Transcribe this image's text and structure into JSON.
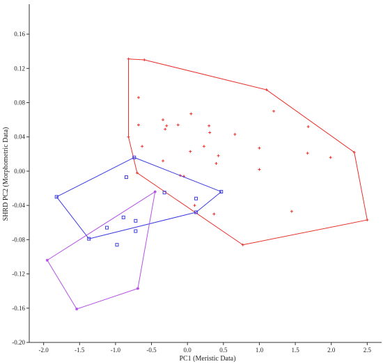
{
  "chart_data": {
    "type": "scatter",
    "xlabel": "PC1 (Meristic Data)",
    "ylabel": "SHRD PC2 (Morphometric Data)",
    "xlim": [
      -2.2,
      2.7
    ],
    "ylim": [
      -0.2,
      0.195
    ],
    "xticks": [
      -2.0,
      -1.5,
      -1.0,
      -0.5,
      0.0,
      0.5,
      1.0,
      1.5,
      2.0,
      2.5
    ],
    "xtick_labels": [
      "-2.0",
      "-1.5",
      "-1.0",
      "-0.5",
      "0.0",
      "0.5",
      "1.0",
      "1.5",
      "2.0",
      "2.5"
    ],
    "yticks": [
      0.16,
      0.12,
      0.08,
      0.04,
      0.0,
      -0.04,
      -0.08,
      -0.12,
      -0.16,
      -0.2
    ],
    "ytick_labels": [
      "0.16",
      "0.12",
      "0.08",
      "0.04",
      "0.00",
      "-0.04",
      "-0.08",
      "-0.12",
      "-0.16",
      "-0.20"
    ],
    "grid": false,
    "series": [
      {
        "color": "#e8302a",
        "marker": "plus",
        "points": [
          [
            -0.82,
            0.131
          ],
          [
            -0.6,
            0.13
          ],
          [
            1.1,
            0.095
          ],
          [
            2.32,
            0.022
          ],
          [
            2.5,
            -0.057
          ],
          [
            0.77,
            -0.086
          ],
          [
            -0.7,
            -0.002
          ],
          [
            -0.82,
            0.04
          ],
          [
            -0.68,
            0.086
          ],
          [
            -0.68,
            0.054
          ],
          [
            -0.63,
            0.029
          ],
          [
            -0.34,
            0.06
          ],
          [
            -0.31,
            0.049
          ],
          [
            -0.29,
            0.053
          ],
          [
            -0.13,
            0.054
          ],
          [
            0.05,
            0.067
          ],
          [
            0.3,
            0.053
          ],
          [
            0.31,
            0.045
          ],
          [
            0.66,
            0.043
          ],
          [
            0.23,
            0.029
          ],
          [
            0.04,
            0.023
          ],
          [
            0.4,
            0.009
          ],
          [
            0.43,
            0.018
          ],
          [
            -0.34,
            0.012
          ],
          [
            1.0,
            0.027
          ],
          [
            1.0,
            0.002
          ],
          [
            1.2,
            0.07
          ],
          [
            1.68,
            0.052
          ],
          [
            1.67,
            0.021
          ],
          [
            1.99,
            0.016
          ],
          [
            -0.1,
            -0.005
          ],
          [
            -0.05,
            -0.006
          ],
          [
            0.1,
            -0.04
          ],
          [
            0.37,
            -0.05
          ],
          [
            1.45,
            -0.047
          ]
        ],
        "hull": [
          [
            -0.82,
            0.131
          ],
          [
            -0.6,
            0.13
          ],
          [
            1.1,
            0.095
          ],
          [
            2.32,
            0.022
          ],
          [
            2.5,
            -0.057
          ],
          [
            0.77,
            -0.086
          ],
          [
            -0.7,
            -0.002
          ],
          [
            -0.82,
            0.04
          ]
        ]
      },
      {
        "color": "#3b3be0",
        "marker": "square",
        "points": [
          [
            -0.74,
            0.016
          ],
          [
            0.47,
            -0.024
          ],
          [
            0.12,
            -0.048
          ],
          [
            -1.37,
            -0.079
          ],
          [
            -1.82,
            -0.03
          ],
          [
            -0.85,
            -0.007
          ],
          [
            -0.32,
            -0.025
          ],
          [
            0.12,
            -0.032
          ],
          [
            -0.89,
            -0.054
          ],
          [
            -1.12,
            -0.066
          ],
          [
            -0.72,
            -0.058
          ],
          [
            -0.72,
            -0.07
          ],
          [
            -0.98,
            -0.086
          ]
        ],
        "hull": [
          [
            -0.74,
            0.016
          ],
          [
            0.47,
            -0.024
          ],
          [
            0.12,
            -0.048
          ],
          [
            -1.37,
            -0.079
          ],
          [
            -1.82,
            -0.03
          ]
        ]
      },
      {
        "color": "#b450e6",
        "marker": "asterisk",
        "points": [
          [
            -0.45,
            -0.024
          ],
          [
            -0.69,
            -0.137
          ],
          [
            -1.54,
            -0.161
          ],
          [
            -1.95,
            -0.104
          ]
        ],
        "hull": [
          [
            -0.45,
            -0.024
          ],
          [
            -0.69,
            -0.137
          ],
          [
            -1.54,
            -0.161
          ],
          [
            -1.95,
            -0.104
          ]
        ]
      }
    ]
  }
}
